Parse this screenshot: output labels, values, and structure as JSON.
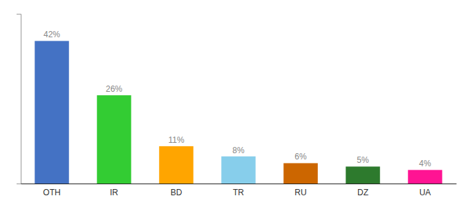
{
  "chart_data": {
    "type": "bar",
    "categories": [
      "OTH",
      "IR",
      "BD",
      "TR",
      "RU",
      "DZ",
      "UA"
    ],
    "values": [
      42,
      26,
      11,
      8,
      6,
      5,
      4
    ],
    "value_labels": [
      "42%",
      "26%",
      "11%",
      "8%",
      "6%",
      "5%",
      "4%"
    ],
    "colors": [
      "#4472C4",
      "#33CC33",
      "#FFA500",
      "#87CEEB",
      "#CC6600",
      "#2D7A2D",
      "#FF1493"
    ],
    "ylim": [
      0,
      50
    ],
    "grid": false,
    "data_labels": true,
    "tick_labels": "x"
  }
}
